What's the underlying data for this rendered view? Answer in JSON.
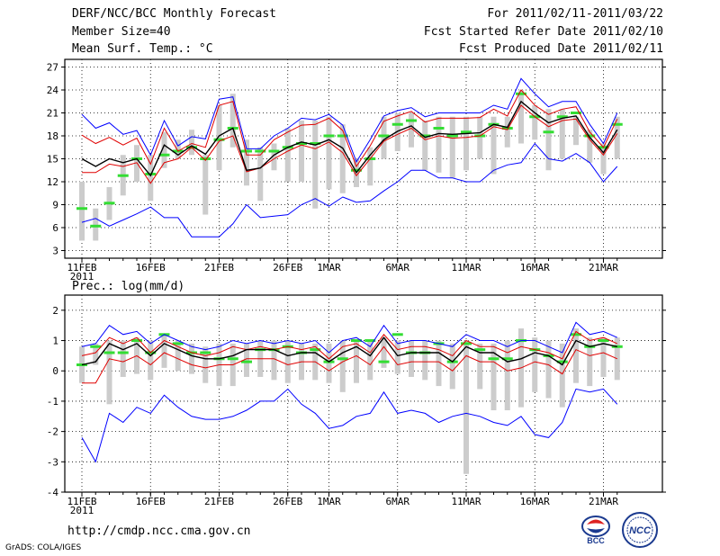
{
  "header": {
    "title": "DERF/NCC/BCC Monthly Forecast",
    "member_size": "Member Size=40",
    "variable_1": "Mean Surf. Temp.: °C",
    "period": "For 2011/02/11-2011/03/22",
    "started_refer": "Fcst Started Refer Date 2011/02/10",
    "produced": "Fcst Produced Date 2011/02/11"
  },
  "footer": {
    "url": "http://cmdp.ncc.cma.gov.cn",
    "grads": "GrADS: COLA/IGES",
    "logo_bcc": "BCC",
    "logo_ncc": "NCC"
  },
  "colors": {
    "max_min": "#0000ff",
    "spread": "#e00000",
    "mean": "#000000",
    "green_mark": "#33dd33",
    "gray_bar": "#cccccc"
  },
  "chart_data": [
    {
      "type": "line",
      "name": "temperature",
      "title": "Mean Surf. Temp.: °C",
      "ylim": [
        2,
        28
      ],
      "yticks": [
        3,
        6,
        9,
        12,
        15,
        18,
        21,
        24,
        27
      ],
      "x_labels": [
        {
          "day": 0,
          "label": "11FEB"
        },
        {
          "day": 5,
          "label": "16FEB"
        },
        {
          "day": 10,
          "label": "21FEB"
        },
        {
          "day": 15,
          "label": "26FEB"
        },
        {
          "day": 18,
          "label": "1MAR"
        },
        {
          "day": 23,
          "label": "6MAR"
        },
        {
          "day": 28,
          "label": "11MAR"
        },
        {
          "day": 33,
          "label": "16MAR"
        },
        {
          "day": 38,
          "label": "21MAR"
        }
      ],
      "year_label": "2011",
      "n_days": 40,
      "series": [
        {
          "name": "max",
          "color": "#0000ff",
          "values": [
            20.8,
            19.0,
            19.7,
            18.2,
            18.7,
            15.5,
            20.0,
            16.7,
            17.9,
            17.6,
            22.8,
            23.1,
            16.3,
            16.3,
            18.0,
            19.0,
            20.3,
            20.1,
            20.8,
            19.4,
            14.6,
            17.5,
            20.6,
            21.3,
            21.7,
            20.5,
            21.0,
            21.0,
            21.0,
            21.0,
            22.0,
            21.5,
            25.5,
            23.5,
            21.8,
            22.5,
            22.5,
            19.5,
            17.0,
            21.0
          ]
        },
        {
          "name": "upper",
          "color": "#e00000",
          "values": [
            18.1,
            17.0,
            17.8,
            16.8,
            17.7,
            14.3,
            19.0,
            16.0,
            17.0,
            16.5,
            22.0,
            22.5,
            15.5,
            15.5,
            17.5,
            18.5,
            19.4,
            19.5,
            20.3,
            18.7,
            14.0,
            16.7,
            19.9,
            20.6,
            21.2,
            19.8,
            20.3,
            20.3,
            20.3,
            20.4,
            21.5,
            20.6,
            24.0,
            22.0,
            20.8,
            21.5,
            21.8,
            18.5,
            16.5,
            20.2
          ]
        },
        {
          "name": "mean",
          "color": "#000000",
          "values": [
            15.0,
            14.0,
            15.0,
            14.5,
            15.0,
            12.8,
            16.8,
            15.5,
            16.7,
            15.6,
            18.0,
            19.0,
            13.5,
            13.8,
            15.5,
            16.5,
            17.2,
            16.8,
            17.5,
            16.4,
            13.2,
            15.5,
            17.5,
            18.6,
            19.3,
            17.8,
            18.3,
            18.2,
            18.3,
            18.4,
            19.5,
            19.1,
            22.5,
            21.0,
            19.7,
            20.3,
            20.6,
            17.8,
            15.8,
            18.8
          ]
        },
        {
          "name": "lower",
          "color": "#e00000",
          "values": [
            13.2,
            13.2,
            14.3,
            14.0,
            14.5,
            11.8,
            14.5,
            15.0,
            16.5,
            14.8,
            17.3,
            18.0,
            13.3,
            13.8,
            15.0,
            16.0,
            16.8,
            16.3,
            17.2,
            15.8,
            12.8,
            15.0,
            17.3,
            18.2,
            19.0,
            17.5,
            18.0,
            17.7,
            17.8,
            18.0,
            19.2,
            18.8,
            22.0,
            20.5,
            19.2,
            20.0,
            20.2,
            17.5,
            15.5,
            18.3
          ]
        },
        {
          "name": "min",
          "color": "#0000ff",
          "values": [
            6.7,
            7.2,
            6.2,
            7.0,
            7.8,
            8.7,
            7.3,
            7.3,
            4.8,
            4.8,
            4.8,
            6.5,
            9.0,
            7.3,
            7.5,
            7.7,
            9.0,
            9.8,
            8.8,
            10.0,
            9.3,
            9.5,
            10.8,
            12.0,
            13.5,
            13.5,
            12.5,
            12.5,
            12.0,
            12.0,
            13.5,
            14.2,
            14.5,
            17.0,
            15.0,
            14.7,
            15.7,
            14.5,
            12.0,
            14.0
          ]
        },
        {
          "name": "green_marks",
          "color": "#33dd33",
          "values": [
            8.5,
            6.2,
            9.2,
            12.8,
            15.0,
            13.0,
            15.5,
            16.0,
            16.5,
            15.0,
            17.5,
            19.0,
            16.0,
            16.0,
            16.0,
            16.5,
            17.0,
            17.0,
            18.0,
            18.0,
            13.5,
            15.0,
            18.0,
            19.5,
            20.0,
            18.0,
            19.0,
            18.0,
            18.5,
            18.0,
            19.5,
            19.0,
            23.5,
            20.5,
            18.5,
            20.5,
            21.0,
            18.0,
            16.5,
            19.5
          ]
        },
        {
          "name": "gray_bars_low",
          "color": "#cccccc",
          "values": [
            4.3,
            4.3,
            7.0,
            10.2,
            12.0,
            9.5,
            13.8,
            15.0,
            15.5,
            7.7,
            13.5,
            16.5,
            11.5,
            9.5,
            13.5,
            12.0,
            12.0,
            8.5,
            11.0,
            10.5,
            11.3,
            11.5,
            15.0,
            16.0,
            16.5,
            13.5,
            13.2,
            12.5,
            13.5,
            15.0,
            13.0,
            16.5,
            17.0,
            17.5,
            13.5,
            15.0,
            16.8,
            14.5,
            13.0,
            15.0
          ]
        },
        {
          "name": "gray_bars_high",
          "color": "#cccccc",
          "values": [
            12.0,
            8.5,
            11.3,
            15.5,
            16.8,
            15.5,
            18.5,
            17.5,
            18.8,
            15.5,
            22.0,
            23.5,
            17.5,
            16.5,
            17.0,
            19.0,
            20.0,
            20.0,
            20.5,
            19.5,
            15.0,
            16.5,
            20.5,
            21.0,
            21.0,
            20.0,
            20.5,
            20.5,
            20.5,
            20.5,
            20.5,
            20.5,
            24.0,
            22.0,
            21.5,
            21.5,
            20.5,
            18.8,
            17.0,
            20.5
          ]
        }
      ]
    },
    {
      "type": "line",
      "name": "precipitation",
      "title": "Prec.: log(mm/d)",
      "ylim": [
        -4,
        2.5
      ],
      "yticks": [
        -4,
        -3,
        -2,
        -1,
        0,
        1,
        2
      ],
      "x_labels": [
        {
          "day": 0,
          "label": "11FEB"
        },
        {
          "day": 5,
          "label": "16FEB"
        },
        {
          "day": 10,
          "label": "21FEB"
        },
        {
          "day": 15,
          "label": "26FEB"
        },
        {
          "day": 18,
          "label": "1MAR"
        },
        {
          "day": 23,
          "label": "6MAR"
        },
        {
          "day": 28,
          "label": "11MAR"
        },
        {
          "day": 33,
          "label": "16MAR"
        },
        {
          "day": 38,
          "label": "21MAR"
        }
      ],
      "year_label": "2011",
      "n_days": 40,
      "series": [
        {
          "name": "max",
          "color": "#0000ff",
          "values": [
            0.8,
            0.9,
            1.5,
            1.2,
            1.3,
            0.9,
            1.2,
            1.0,
            0.8,
            0.7,
            0.8,
            1.0,
            0.9,
            1.0,
            0.9,
            1.0,
            0.9,
            1.0,
            0.6,
            1.0,
            1.1,
            0.8,
            1.5,
            0.9,
            1.0,
            1.0,
            0.9,
            0.8,
            1.2,
            1.0,
            1.0,
            0.8,
            1.0,
            1.0,
            0.8,
            0.6,
            1.6,
            1.2,
            1.3,
            1.1
          ]
        },
        {
          "name": "upper",
          "color": "#e00000",
          "values": [
            0.5,
            0.6,
            1.1,
            0.9,
            1.1,
            0.6,
            1.0,
            0.8,
            0.6,
            0.5,
            0.6,
            0.8,
            0.7,
            0.8,
            0.7,
            0.8,
            0.7,
            0.8,
            0.4,
            0.8,
            0.9,
            0.6,
            1.2,
            0.7,
            0.8,
            0.8,
            0.7,
            0.5,
            1.0,
            0.8,
            0.8,
            0.6,
            0.8,
            0.7,
            0.6,
            0.4,
            1.3,
            1.0,
            1.1,
            0.9
          ]
        },
        {
          "name": "mean",
          "color": "#000000",
          "values": [
            0.2,
            0.3,
            0.9,
            0.7,
            0.9,
            0.5,
            0.9,
            0.7,
            0.5,
            0.4,
            0.4,
            0.5,
            0.7,
            0.7,
            0.7,
            0.5,
            0.6,
            0.6,
            0.3,
            0.6,
            0.8,
            0.5,
            1.1,
            0.5,
            0.6,
            0.6,
            0.6,
            0.3,
            0.8,
            0.6,
            0.6,
            0.3,
            0.4,
            0.6,
            0.5,
            0.2,
            1.0,
            0.8,
            0.9,
            0.8
          ]
        },
        {
          "name": "lower",
          "color": "#e00000",
          "values": [
            -0.4,
            -0.4,
            0.4,
            0.3,
            0.5,
            0.2,
            0.6,
            0.4,
            0.2,
            0.1,
            0.2,
            0.2,
            0.4,
            0.4,
            0.4,
            0.2,
            0.3,
            0.3,
            0.0,
            0.3,
            0.5,
            0.2,
            0.8,
            0.2,
            0.3,
            0.3,
            0.3,
            0.0,
            0.5,
            0.3,
            0.3,
            0.0,
            0.1,
            0.3,
            0.2,
            -0.1,
            0.7,
            0.5,
            0.6,
            0.4
          ]
        },
        {
          "name": "min",
          "color": "#0000ff",
          "values": [
            -2.2,
            -3.0,
            -1.4,
            -1.7,
            -1.2,
            -1.4,
            -0.8,
            -1.2,
            -1.5,
            -1.6,
            -1.6,
            -1.5,
            -1.3,
            -1.0,
            -1.0,
            -0.6,
            -1.1,
            -1.4,
            -1.9,
            -1.8,
            -1.5,
            -1.4,
            -0.7,
            -1.4,
            -1.3,
            -1.4,
            -1.7,
            -1.5,
            -1.4,
            -1.5,
            -1.7,
            -1.8,
            -1.5,
            -2.1,
            -2.2,
            -1.7,
            -0.6,
            -0.7,
            -0.6,
            -1.1
          ]
        },
        {
          "name": "green_marks",
          "color": "#33dd33",
          "values": [
            0.2,
            0.8,
            0.6,
            0.6,
            1.0,
            0.6,
            1.2,
            0.9,
            0.6,
            0.6,
            0.4,
            0.4,
            0.3,
            0.7,
            0.7,
            0.8,
            0.6,
            0.7,
            0.3,
            0.4,
            1.0,
            1.0,
            0.3,
            1.2,
            0.6,
            0.6,
            0.9,
            0.3,
            0.9,
            0.7,
            0.4,
            0.4,
            1.0,
            0.7,
            0.5,
            0.3,
            1.2,
            0.8,
            1.0,
            0.8
          ]
        },
        {
          "name": "gray_bars_low",
          "color": "#cccccc",
          "values": [
            -0.4,
            0.2,
            -1.1,
            -0.2,
            -0.1,
            -0.3,
            0.1,
            0.0,
            -0.1,
            -0.4,
            -0.5,
            -0.5,
            -0.2,
            -0.2,
            -0.3,
            -0.4,
            -0.3,
            -0.3,
            -0.4,
            -0.7,
            -0.4,
            -0.3,
            0.1,
            -0.1,
            -0.2,
            -0.3,
            -0.5,
            -0.6,
            -3.4,
            -0.6,
            -1.3,
            -1.3,
            -1.2,
            -0.7,
            -0.9,
            -1.2,
            -0.4,
            -0.5,
            -0.2,
            -0.3
          ]
        },
        {
          "name": "gray_bars_high",
          "color": "#cccccc",
          "values": [
            0.8,
            0.9,
            1.0,
            1.0,
            1.1,
            1.0,
            1.2,
            1.0,
            0.9,
            0.8,
            0.9,
            0.9,
            0.9,
            1.0,
            1.0,
            1.0,
            0.9,
            0.9,
            0.9,
            1.0,
            1.0,
            1.0,
            1.1,
            1.0,
            1.0,
            1.0,
            1.0,
            0.9,
            1.0,
            0.9,
            0.9,
            1.0,
            1.4,
            1.1,
            1.0,
            0.9,
            1.4,
            1.1,
            1.1,
            1.1
          ]
        }
      ]
    }
  ]
}
